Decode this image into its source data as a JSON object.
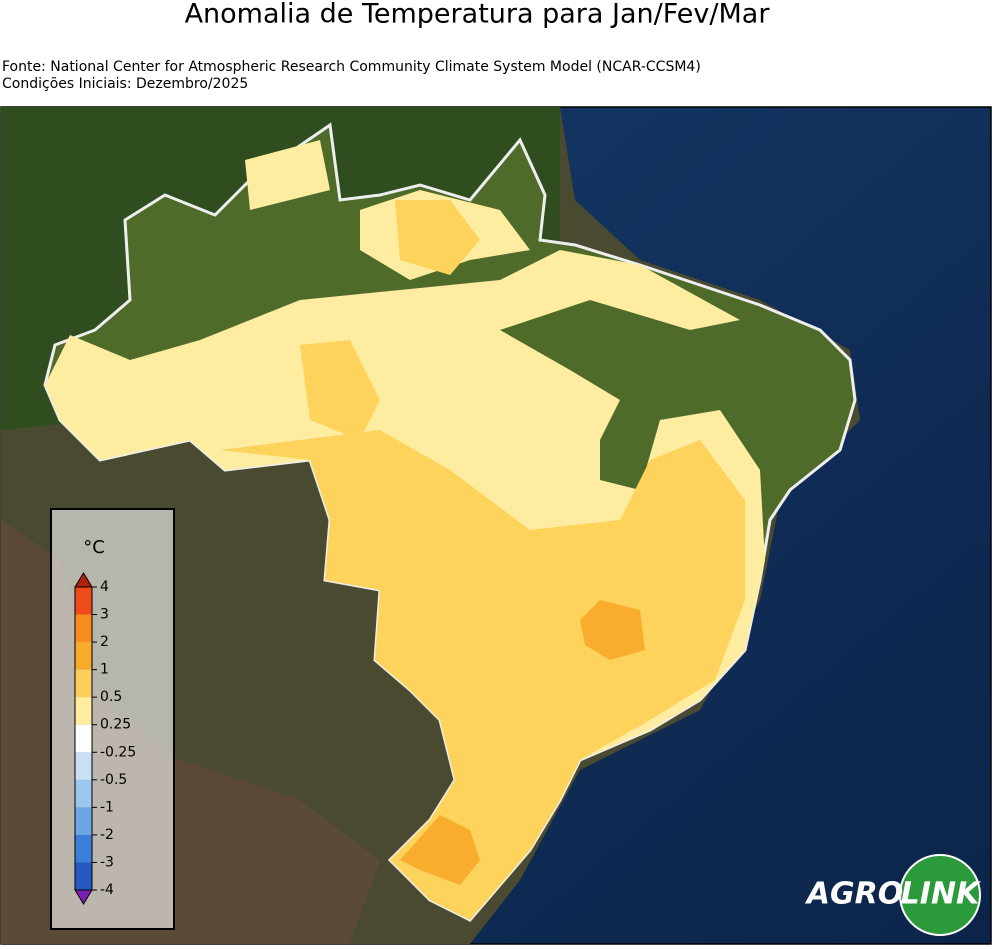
{
  "header": {
    "title": "Anomalia de Temperatura para Jan/Fev/Mar",
    "source": "Fonte: National Center for Atmospheric Research Community Climate System Model (NCAR-CCSM4)",
    "initial_conditions": "Condições Iniciais: Dezembro/2025"
  },
  "colorbar": {
    "unit": "°C",
    "ticks": [
      4,
      3,
      2,
      1,
      0.5,
      0.25,
      -0.25,
      -0.5,
      -1,
      -2,
      -3,
      -4
    ],
    "colors": [
      "#ee4a1c",
      "#f78c1f",
      "#f8aa2a",
      "#fccf5a",
      "#feec9f",
      "#ffffff",
      "#c9e0f4",
      "#9bc7ef",
      "#6ba6e5",
      "#3c7fd8",
      "#2458c3"
    ],
    "over_color": "#b0220f",
    "under_color": "#7b1fb2"
  },
  "logo": {
    "left": "AGRO",
    "right": "LINK"
  }
}
